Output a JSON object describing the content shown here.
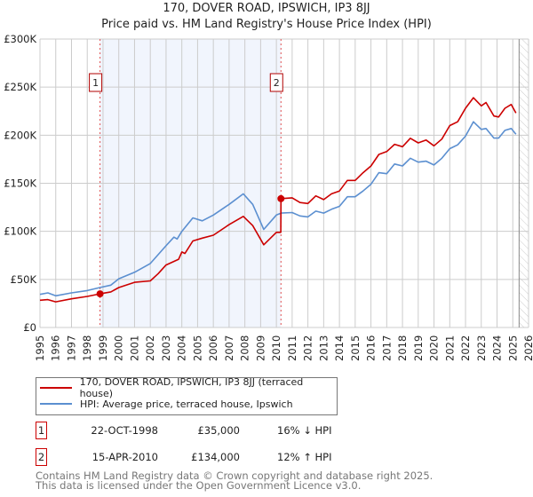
{
  "chart_data": {
    "type": "line",
    "title": "170, DOVER ROAD, IPSWICH, IP3 8JJ",
    "subtitle": "Price paid vs. HM Land Registry's House Price Index (HPI)",
    "xlim": [
      1995,
      2026
    ],
    "ylim": [
      0,
      300000
    ],
    "x_ticks": [
      "1995",
      "1996",
      "1997",
      "1998",
      "1999",
      "2000",
      "2001",
      "2002",
      "2003",
      "2004",
      "2005",
      "2006",
      "2007",
      "2008",
      "2009",
      "2010",
      "2011",
      "2012",
      "2013",
      "2014",
      "2015",
      "2016",
      "2017",
      "2018",
      "2019",
      "2020",
      "2021",
      "2022",
      "2023",
      "2024",
      "2025",
      "2026"
    ],
    "y_ticks": [
      {
        "value": 0,
        "label": "£0"
      },
      {
        "value": 50000,
        "label": "£50K"
      },
      {
        "value": 100000,
        "label": "£100K"
      },
      {
        "value": 150000,
        "label": "£150K"
      },
      {
        "value": 200000,
        "label": "£200K"
      },
      {
        "value": 250000,
        "label": "£250K"
      },
      {
        "value": 300000,
        "label": "£300K"
      }
    ],
    "grid": true,
    "shaded_period": [
      1998.8,
      2010.29
    ],
    "data_end": 2025.4,
    "series": [
      {
        "name": "170, DOVER ROAD, IPSWICH, IP3 8JJ (terraced house)",
        "color": "#cc0000",
        "x": [
          1995,
          1995.5,
          1996,
          1997,
          1998,
          1998.8,
          1999.5,
          2000,
          2001,
          2002,
          2002.5,
          2003,
          2003.8,
          2004,
          2004.2,
          2004.7,
          2005.3,
          2006,
          2007,
          2007.9,
          2008.5,
          2009.2,
          2010,
          2010.28,
          2010.29,
          2011,
          2011.5,
          2012,
          2012.5,
          2013,
          2013.5,
          2014,
          2014.5,
          2015,
          2015.5,
          2016,
          2016.5,
          2017,
          2017.5,
          2018,
          2018.5,
          2019,
          2019.5,
          2020,
          2020.5,
          2021,
          2021.5,
          2022,
          2022.5,
          2023,
          2023.3,
          2023.8,
          2024.1,
          2024.5,
          2024.9,
          2025.2
        ],
        "y": [
          28300,
          29000,
          26700,
          29800,
          32300,
          35000,
          37000,
          41500,
          47000,
          48500,
          56000,
          65000,
          71000,
          78600,
          77000,
          90000,
          93000,
          96000,
          107000,
          115600,
          106000,
          86000,
          99000,
          99000,
          134000,
          134900,
          130000,
          129000,
          136900,
          133000,
          139000,
          142000,
          153000,
          153000,
          161000,
          168000,
          180000,
          183000,
          190500,
          188000,
          196800,
          192000,
          195000,
          189000,
          196000,
          210000,
          214000,
          228000,
          239000,
          230500,
          234000,
          220000,
          219000,
          228000,
          232000,
          223000
        ]
      },
      {
        "name": "HPI: Average price, terraced house, Ipswich",
        "color": "#5b8fd0",
        "x": [
          1995,
          1995.5,
          1996,
          1997,
          1998,
          1998.8,
          1999.5,
          2000,
          2001,
          2002,
          2003,
          2003.5,
          2003.7,
          2004,
          2004.7,
          2005.3,
          2006,
          2007,
          2007.9,
          2008.5,
          2009.2,
          2010,
          2010.3,
          2011,
          2011.5,
          2012,
          2012.5,
          2013,
          2013.5,
          2014,
          2014.5,
          2015,
          2015.5,
          2016,
          2016.5,
          2017,
          2017.5,
          2018,
          2018.5,
          2019,
          2019.5,
          2020,
          2020.5,
          2021,
          2021.5,
          2022,
          2022.5,
          2023,
          2023.3,
          2023.8,
          2024.1,
          2024.5,
          2024.9,
          2025.2
        ],
        "y": [
          34400,
          36000,
          33000,
          36000,
          38400,
          41500,
          44000,
          50700,
          57400,
          66600,
          85000,
          94000,
          92000,
          100000,
          114000,
          111000,
          117000,
          128000,
          139000,
          128000,
          102000,
          117000,
          119000,
          119500,
          116000,
          115000,
          121000,
          119000,
          123000,
          126000,
          136000,
          136000,
          142000,
          149000,
          161000,
          160000,
          170000,
          168000,
          176000,
          172000,
          173000,
          169000,
          176000,
          186000,
          190000,
          199000,
          214000,
          206000,
          207000,
          197000,
          197000,
          205000,
          207000,
          201000
        ]
      }
    ],
    "annotations": [
      {
        "label": "1",
        "x": 1998.81,
        "y": 35000
      },
      {
        "label": "2",
        "x": 2010.29,
        "y": 134000
      }
    ]
  },
  "title_line1": "170, DOVER ROAD, IPSWICH, IP3 8JJ",
  "title_line2": "Price paid vs. HM Land Registry's House Price Index (HPI)",
  "legend": {
    "red": "170, DOVER ROAD, IPSWICH, IP3 8JJ (terraced house)",
    "blue": "HPI: Average price, terraced house, Ipswich"
  },
  "transactions": [
    {
      "num": "1",
      "date": "22-OCT-1998",
      "price": "£35,000",
      "hpi": "16% ↓ HPI"
    },
    {
      "num": "2",
      "date": "15-APR-2010",
      "price": "£134,000",
      "hpi": "12% ↑ HPI"
    }
  ],
  "footer": {
    "line1": "Contains HM Land Registry data © Crown copyright and database right 2025.",
    "line2": "This data is licensed under the Open Government Licence v3.0."
  }
}
